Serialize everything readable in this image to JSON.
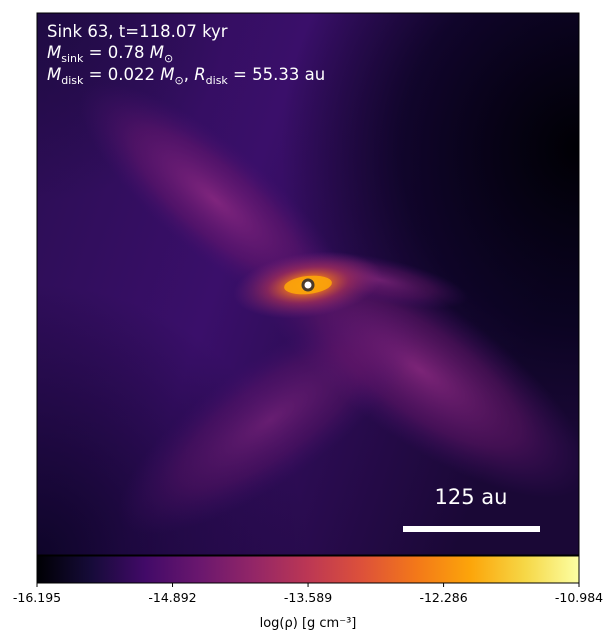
{
  "chart_data": {
    "type": "heatmap",
    "colormap": "inferno",
    "title_lines": [
      "Sink 63, t=118.07 kyr",
      "M_sink = 0.78 M⊙",
      "M_disk = 0.022 M⊙, R_disk = 55.33 au"
    ],
    "sink": {
      "id": 63,
      "time": "118.07 kyr",
      "mass": "0.78",
      "disk_mass": "0.022",
      "disk_radius": "55.33 au"
    },
    "scale_bar": {
      "label": "125 au",
      "length_au": 125
    },
    "colorbar": {
      "label": "log(ρ) [g cm⁻³]",
      "range": [
        -16.195,
        -10.984
      ],
      "ticks": [
        "-16.195",
        "-14.892",
        "-13.589",
        "-12.286",
        "-10.984"
      ]
    },
    "colors": {
      "background_dark": "#000004",
      "field_purple": "#3b0f6f",
      "mid_magenta": "#8c2981",
      "orange": "#f1711f",
      "bright_yellow": "#fcffa4",
      "annotation_text": "#ffffff"
    }
  }
}
